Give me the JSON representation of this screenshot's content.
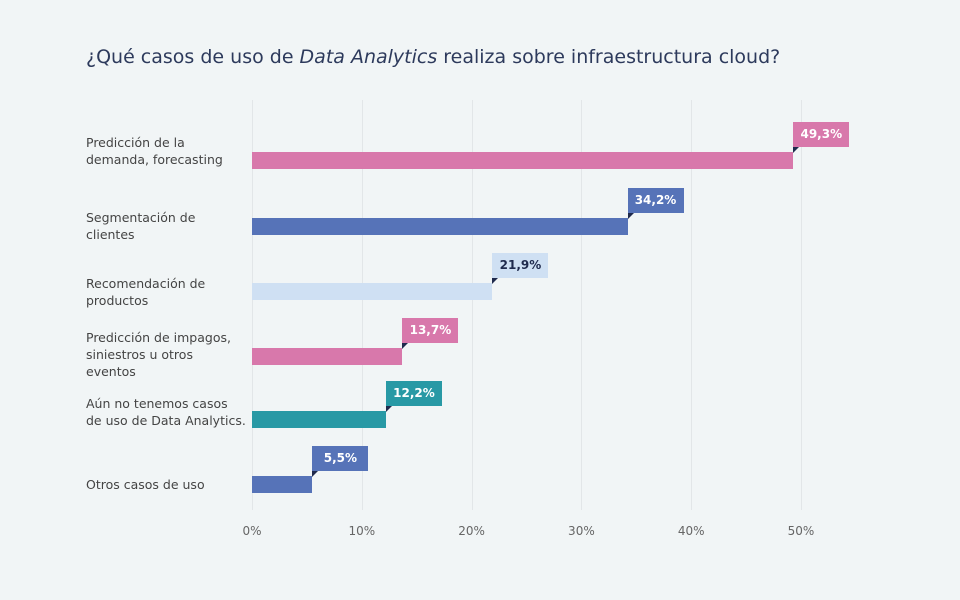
{
  "title": {
    "prefix": "¿Qué casos de uso de ",
    "italic": "Data Analytics",
    "suffix": " realiza sobre infraestructura cloud?"
  },
  "chart_data": {
    "type": "bar",
    "orientation": "horizontal",
    "title": "¿Qué casos de uso de Data Analytics realiza sobre infraestructura cloud?",
    "categories": [
      "Predicción de la demanda, forecasting",
      "Segmentación de clientes",
      "Recomendación de productos",
      "Predicción de impagos, siniestros u otros eventos",
      "Aún no tenemos casos de uso de Data Analytics.",
      "Otros casos de uso"
    ],
    "values": [
      49.3,
      34.2,
      21.9,
      13.7,
      12.2,
      5.5
    ],
    "data_labels": [
      "49,3%",
      "34,2%",
      "21,9%",
      "13,7%",
      "12,2%",
      "5,5%"
    ],
    "colors": [
      "#d878ab",
      "#5673b8",
      "#cfe0f3",
      "#d878ab",
      "#2899a5",
      "#5673b8"
    ],
    "label_text_colors": [
      "#ffffff",
      "#ffffff",
      "#1f2a4d",
      "#ffffff",
      "#ffffff",
      "#ffffff"
    ],
    "xlim": [
      0,
      50
    ],
    "xticks": [
      "0%",
      "10%",
      "20%",
      "30%",
      "40%",
      "50%"
    ],
    "grid": true
  }
}
